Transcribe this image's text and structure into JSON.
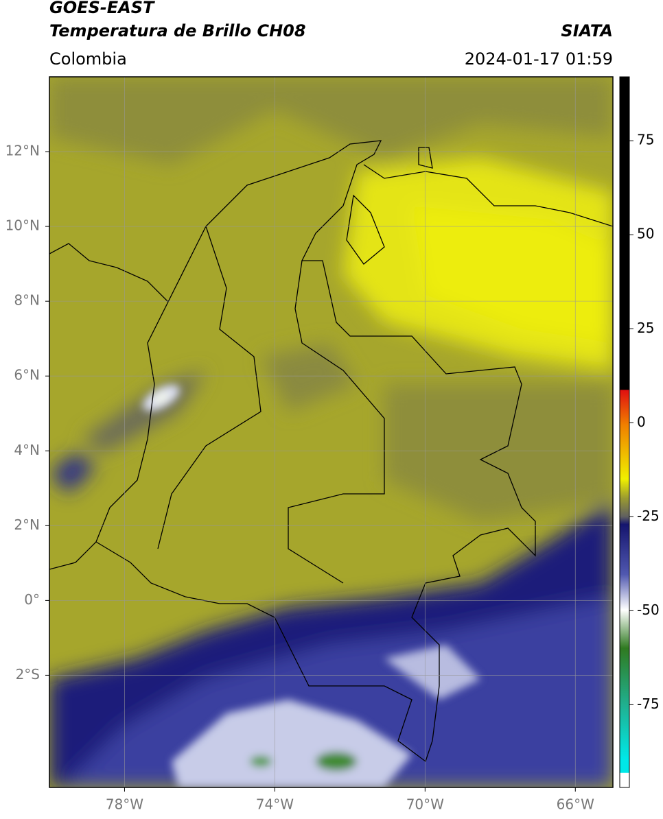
{
  "header": {
    "satellite": "GOES-EAST",
    "product": "Temperatura de Brillo CH08",
    "source": "SIATA",
    "region": "Colombia",
    "datetime": "2024-01-17 01:59"
  },
  "map": {
    "xlim": [
      -80,
      -65
    ],
    "ylim": [
      -5,
      14
    ],
    "xticks": [
      {
        "value": -78,
        "label": "78°W"
      },
      {
        "value": -74,
        "label": "74°W"
      },
      {
        "value": -70,
        "label": "70°W"
      },
      {
        "value": -66,
        "label": "66°W"
      }
    ],
    "yticks": [
      {
        "value": 12,
        "label": "12°N"
      },
      {
        "value": 10,
        "label": "10°N"
      },
      {
        "value": 8,
        "label": "8°N"
      },
      {
        "value": 6,
        "label": "6°N"
      },
      {
        "value": 4,
        "label": "4°N"
      },
      {
        "value": 2,
        "label": "2°N"
      },
      {
        "value": 0,
        "label": "0°"
      },
      {
        "value": -2,
        "label": "2°S"
      }
    ],
    "grid": true
  },
  "colorbar": {
    "clim": [
      -97,
      92
    ],
    "ticks": [
      75,
      50,
      25,
      0,
      -25,
      -50,
      -75
    ]
  }
}
